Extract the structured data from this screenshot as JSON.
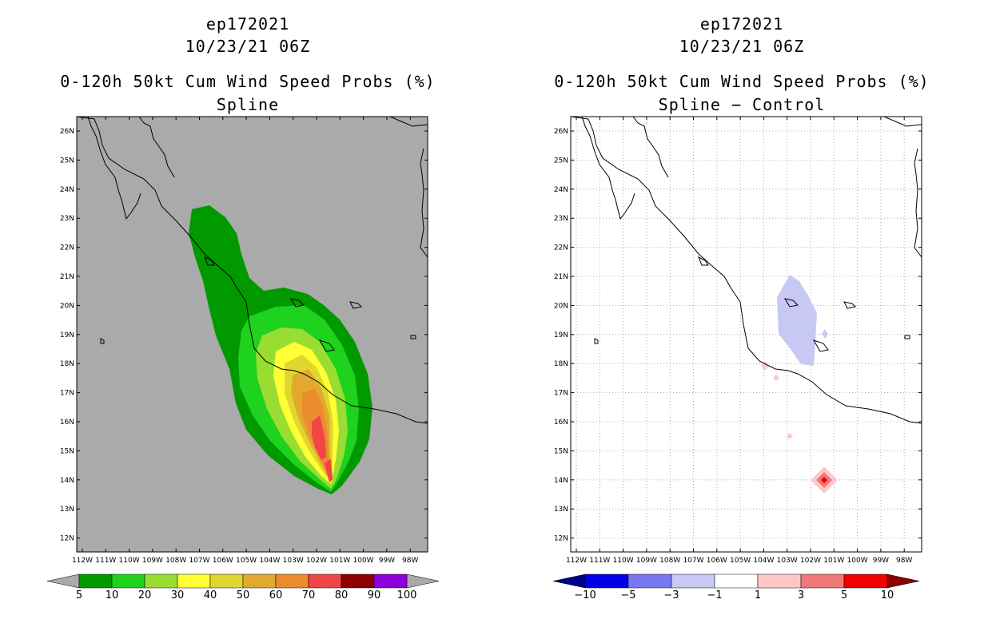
{
  "left_panel": {
    "storm_id": "ep172021",
    "datetime": "10/23/21 06Z",
    "title": "0-120h 50kt Cum Wind Speed Probs (%)",
    "subtitle": "Spline",
    "colorbar": {
      "labels": [
        "5",
        "10",
        "20",
        "30",
        "40",
        "50",
        "60",
        "70",
        "80",
        "90",
        "100"
      ],
      "colors": [
        "#009900",
        "#1ed21e",
        "#99dd33",
        "#ffff33",
        "#e1d62d",
        "#e1aa2d",
        "#eb8c2d",
        "#f04646",
        "#8c0000",
        "#8c00dc"
      ],
      "end_color": "#aaaaaa"
    }
  },
  "right_panel": {
    "storm_id": "ep172021",
    "datetime": "10/23/21 06Z",
    "title": "0-120h 50kt Cum Wind Speed Probs (%)",
    "subtitle": "Spline − Control",
    "colorbar": {
      "labels": [
        "−10",
        "−5",
        "−3",
        "−1",
        "1",
        "3",
        "5",
        "10"
      ],
      "colors": [
        "#0000e6",
        "#7878f0",
        "#c8c8f5",
        "#ffffff",
        "#ffc8c8",
        "#f07878",
        "#f00000"
      ],
      "low_end_color": "#00008c",
      "high_end_color": "#8c0000"
    }
  },
  "map": {
    "lat_labels": [
      "26N",
      "25N",
      "24N",
      "23N",
      "22N",
      "21N",
      "20N",
      "19N",
      "18N",
      "17N",
      "16N",
      "15N",
      "14N",
      "13N",
      "12N"
    ],
    "lon_labels": [
      "112W",
      "111W",
      "110W",
      "109W",
      "108W",
      "107W",
      "106W",
      "105W",
      "104W",
      "103W",
      "102W",
      "101W",
      "100W",
      "99W",
      "98W"
    ],
    "background_left": "#aaaaaa",
    "background_right": "#ffffff"
  }
}
